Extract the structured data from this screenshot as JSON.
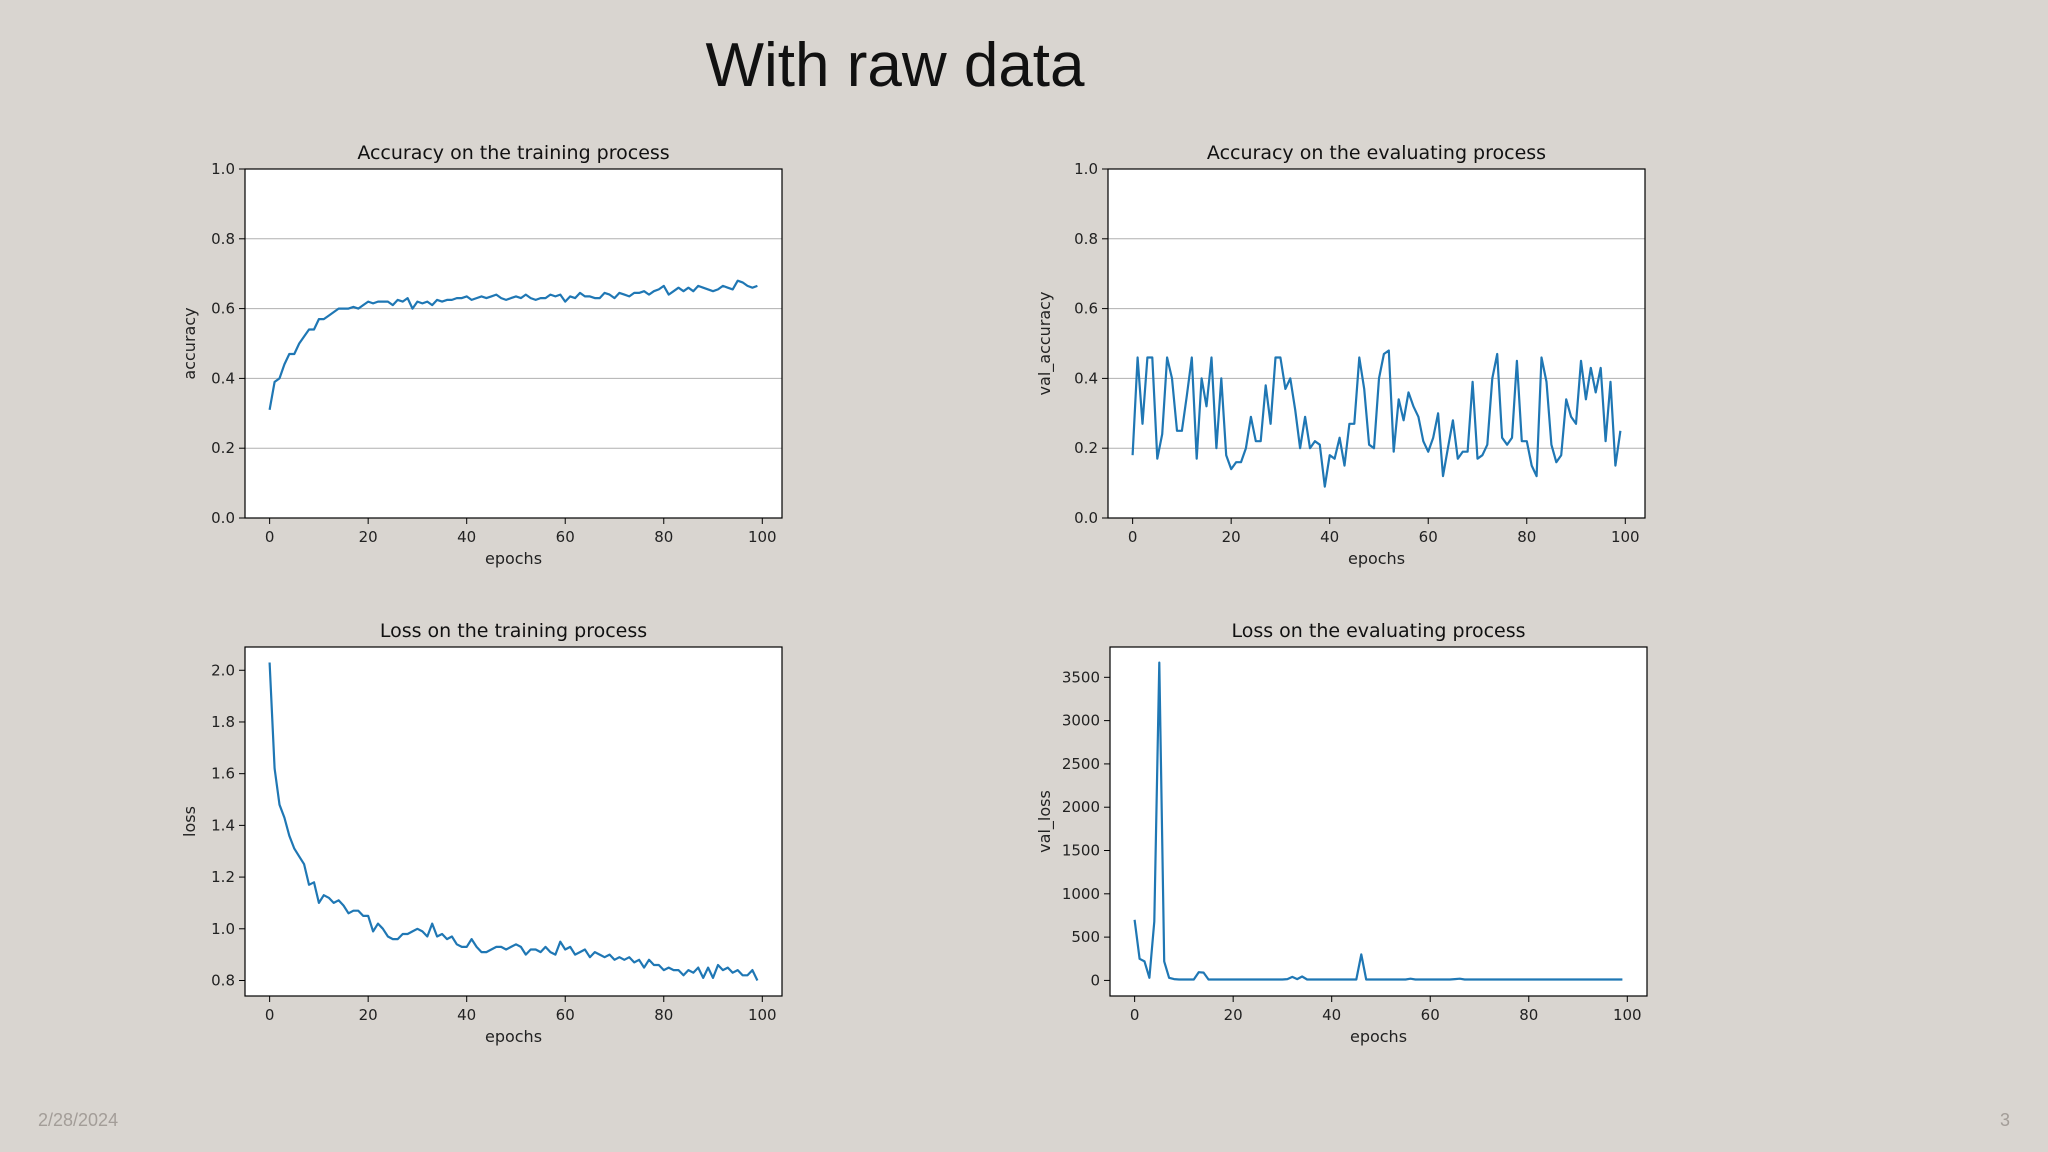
{
  "slide": {
    "title": "With raw data",
    "date": "2/28/2024",
    "page": "3"
  },
  "colors": {
    "line": "#1f77b4",
    "grid": "#b0b0b0",
    "axis": "#000000",
    "plot_bg": "#ffffff"
  },
  "chart_data": [
    {
      "type": "line",
      "title": "Accuracy on the training process",
      "xlabel": "epochs",
      "ylabel": "accuracy",
      "xlim": [
        -5,
        104
      ],
      "ylim": [
        0.0,
        1.0
      ],
      "xticks": [
        0,
        20,
        40,
        60,
        80,
        100
      ],
      "yticks": [
        0.0,
        0.2,
        0.4,
        0.6,
        0.8,
        1.0
      ],
      "ytick_labels": [
        "0.0",
        "0.2",
        "0.4",
        "0.6",
        "0.8",
        "1.0"
      ],
      "grid": "y",
      "x": [
        0,
        1,
        2,
        3,
        4,
        5,
        6,
        7,
        8,
        9,
        10,
        11,
        12,
        13,
        14,
        15,
        16,
        17,
        18,
        19,
        20,
        21,
        22,
        23,
        24,
        25,
        26,
        27,
        28,
        29,
        30,
        31,
        32,
        33,
        34,
        35,
        36,
        37,
        38,
        39,
        40,
        41,
        42,
        43,
        44,
        45,
        46,
        47,
        48,
        49,
        50,
        51,
        52,
        53,
        54,
        55,
        56,
        57,
        58,
        59,
        60,
        61,
        62,
        63,
        64,
        65,
        66,
        67,
        68,
        69,
        70,
        71,
        72,
        73,
        74,
        75,
        76,
        77,
        78,
        79,
        80,
        81,
        82,
        83,
        84,
        85,
        86,
        87,
        88,
        89,
        90,
        91,
        92,
        93,
        94,
        95,
        96,
        97,
        98,
        99
      ],
      "values": [
        0.31,
        0.39,
        0.4,
        0.44,
        0.47,
        0.47,
        0.5,
        0.52,
        0.54,
        0.54,
        0.57,
        0.57,
        0.58,
        0.59,
        0.6,
        0.6,
        0.6,
        0.605,
        0.6,
        0.61,
        0.62,
        0.615,
        0.62,
        0.62,
        0.62,
        0.61,
        0.625,
        0.62,
        0.63,
        0.6,
        0.62,
        0.615,
        0.62,
        0.61,
        0.625,
        0.62,
        0.625,
        0.625,
        0.63,
        0.63,
        0.635,
        0.625,
        0.63,
        0.635,
        0.63,
        0.635,
        0.64,
        0.63,
        0.625,
        0.63,
        0.635,
        0.63,
        0.64,
        0.63,
        0.625,
        0.63,
        0.63,
        0.64,
        0.635,
        0.64,
        0.62,
        0.635,
        0.63,
        0.645,
        0.635,
        0.635,
        0.63,
        0.63,
        0.645,
        0.64,
        0.63,
        0.645,
        0.64,
        0.635,
        0.645,
        0.645,
        0.65,
        0.64,
        0.65,
        0.655,
        0.665,
        0.64,
        0.65,
        0.66,
        0.65,
        0.66,
        0.65,
        0.665,
        0.66,
        0.655,
        0.65,
        0.655,
        0.665,
        0.66,
        0.655,
        0.68,
        0.675,
        0.665,
        0.66,
        0.665
      ]
    },
    {
      "type": "line",
      "title": "Accuracy on the evaluating process",
      "xlabel": "epochs",
      "ylabel": "val_accuracy",
      "xlim": [
        -5,
        104
      ],
      "ylim": [
        0.0,
        1.0
      ],
      "xticks": [
        0,
        20,
        40,
        60,
        80,
        100
      ],
      "yticks": [
        0.0,
        0.2,
        0.4,
        0.6,
        0.8,
        1.0
      ],
      "ytick_labels": [
        "0.0",
        "0.2",
        "0.4",
        "0.6",
        "0.8",
        "1.0"
      ],
      "grid": "y",
      "x": [
        0,
        1,
        2,
        3,
        4,
        5,
        6,
        7,
        8,
        9,
        10,
        11,
        12,
        13,
        14,
        15,
        16,
        17,
        18,
        19,
        20,
        21,
        22,
        23,
        24,
        25,
        26,
        27,
        28,
        29,
        30,
        31,
        32,
        33,
        34,
        35,
        36,
        37,
        38,
        39,
        40,
        41,
        42,
        43,
        44,
        45,
        46,
        47,
        48,
        49,
        50,
        51,
        52,
        53,
        54,
        55,
        56,
        57,
        58,
        59,
        60,
        61,
        62,
        63,
        64,
        65,
        66,
        67,
        68,
        69,
        70,
        71,
        72,
        73,
        74,
        75,
        76,
        77,
        78,
        79,
        80,
        81,
        82,
        83,
        84,
        85,
        86,
        87,
        88,
        89,
        90,
        91,
        92,
        93,
        94,
        95,
        96,
        97,
        98,
        99
      ],
      "values": [
        0.18,
        0.46,
        0.27,
        0.46,
        0.46,
        0.17,
        0.24,
        0.46,
        0.4,
        0.25,
        0.25,
        0.35,
        0.46,
        0.17,
        0.4,
        0.32,
        0.46,
        0.2,
        0.4,
        0.18,
        0.14,
        0.16,
        0.16,
        0.2,
        0.29,
        0.22,
        0.22,
        0.38,
        0.27,
        0.46,
        0.46,
        0.37,
        0.4,
        0.31,
        0.2,
        0.29,
        0.2,
        0.22,
        0.21,
        0.09,
        0.18,
        0.17,
        0.23,
        0.15,
        0.27,
        0.27,
        0.46,
        0.37,
        0.21,
        0.2,
        0.4,
        0.47,
        0.48,
        0.19,
        0.34,
        0.28,
        0.36,
        0.32,
        0.29,
        0.22,
        0.19,
        0.23,
        0.3,
        0.12,
        0.2,
        0.28,
        0.17,
        0.19,
        0.19,
        0.39,
        0.17,
        0.18,
        0.21,
        0.4,
        0.47,
        0.23,
        0.21,
        0.23,
        0.45,
        0.22,
        0.22,
        0.15,
        0.12,
        0.46,
        0.39,
        0.21,
        0.16,
        0.18,
        0.34,
        0.29,
        0.27,
        0.45,
        0.34,
        0.43,
        0.36,
        0.43,
        0.22,
        0.39,
        0.15,
        0.25
      ]
    },
    {
      "type": "line",
      "title": "Loss on the training process",
      "xlabel": "epochs",
      "ylabel": "loss",
      "xlim": [
        -5,
        104
      ],
      "ylim": [
        0.74,
        2.09
      ],
      "xticks": [
        0,
        20,
        40,
        60,
        80,
        100
      ],
      "yticks": [
        0.8,
        1.0,
        1.2,
        1.4,
        1.6,
        1.8,
        2.0
      ],
      "ytick_labels": [
        "0.8",
        "1.0",
        "1.2",
        "1.4",
        "1.6",
        "1.8",
        "2.0"
      ],
      "grid": "none",
      "x": [
        0,
        1,
        2,
        3,
        4,
        5,
        6,
        7,
        8,
        9,
        10,
        11,
        12,
        13,
        14,
        15,
        16,
        17,
        18,
        19,
        20,
        21,
        22,
        23,
        24,
        25,
        26,
        27,
        28,
        29,
        30,
        31,
        32,
        33,
        34,
        35,
        36,
        37,
        38,
        39,
        40,
        41,
        42,
        43,
        44,
        45,
        46,
        47,
        48,
        49,
        50,
        51,
        52,
        53,
        54,
        55,
        56,
        57,
        58,
        59,
        60,
        61,
        62,
        63,
        64,
        65,
        66,
        67,
        68,
        69,
        70,
        71,
        72,
        73,
        74,
        75,
        76,
        77,
        78,
        79,
        80,
        81,
        82,
        83,
        84,
        85,
        86,
        87,
        88,
        89,
        90,
        91,
        92,
        93,
        94,
        95,
        96,
        97,
        98,
        99
      ],
      "values": [
        2.03,
        1.62,
        1.48,
        1.43,
        1.36,
        1.31,
        1.28,
        1.25,
        1.17,
        1.18,
        1.1,
        1.13,
        1.12,
        1.1,
        1.11,
        1.09,
        1.06,
        1.07,
        1.07,
        1.05,
        1.05,
        0.99,
        1.02,
        1.0,
        0.97,
        0.96,
        0.96,
        0.98,
        0.98,
        0.99,
        1.0,
        0.99,
        0.97,
        1.02,
        0.97,
        0.98,
        0.96,
        0.97,
        0.94,
        0.93,
        0.93,
        0.96,
        0.93,
        0.91,
        0.91,
        0.92,
        0.93,
        0.93,
        0.92,
        0.93,
        0.94,
        0.93,
        0.9,
        0.92,
        0.92,
        0.91,
        0.93,
        0.91,
        0.9,
        0.95,
        0.92,
        0.93,
        0.9,
        0.91,
        0.92,
        0.89,
        0.91,
        0.9,
        0.89,
        0.9,
        0.88,
        0.89,
        0.88,
        0.89,
        0.87,
        0.88,
        0.85,
        0.88,
        0.86,
        0.86,
        0.84,
        0.85,
        0.84,
        0.84,
        0.82,
        0.84,
        0.83,
        0.85,
        0.81,
        0.85,
        0.81,
        0.86,
        0.84,
        0.85,
        0.83,
        0.84,
        0.82,
        0.82,
        0.84,
        0.8
      ]
    },
    {
      "type": "line",
      "title": "Loss on the evaluating process",
      "xlabel": "epochs",
      "ylabel": "val_loss",
      "xlim": [
        -5,
        104
      ],
      "ylim": [
        -180,
        3850
      ],
      "xticks": [
        0,
        20,
        40,
        60,
        80,
        100
      ],
      "yticks": [
        0,
        500,
        1000,
        1500,
        2000,
        2500,
        3000,
        3500
      ],
      "ytick_labels": [
        "0",
        "500",
        "1000",
        "1500",
        "2000",
        "2500",
        "3000",
        "3500"
      ],
      "grid": "none",
      "x": [
        0,
        1,
        2,
        3,
        4,
        5,
        6,
        7,
        8,
        9,
        10,
        11,
        12,
        13,
        14,
        15,
        16,
        17,
        18,
        19,
        20,
        21,
        22,
        23,
        24,
        25,
        26,
        27,
        28,
        29,
        30,
        31,
        32,
        33,
        34,
        35,
        36,
        37,
        38,
        39,
        40,
        41,
        42,
        43,
        44,
        45,
        46,
        47,
        48,
        49,
        50,
        51,
        52,
        53,
        54,
        55,
        56,
        57,
        58,
        59,
        60,
        61,
        62,
        63,
        64,
        65,
        66,
        67,
        68,
        69,
        70,
        71,
        72,
        73,
        74,
        75,
        76,
        77,
        78,
        79,
        80,
        81,
        82,
        83,
        84,
        85,
        86,
        87,
        88,
        89,
        90,
        91,
        92,
        93,
        94,
        95,
        96,
        97,
        98,
        99
      ],
      "values": [
        700,
        250,
        220,
        30,
        680,
        3670,
        220,
        30,
        15,
        10,
        10,
        10,
        10,
        95,
        90,
        10,
        10,
        10,
        10,
        10,
        10,
        10,
        10,
        10,
        10,
        10,
        10,
        10,
        10,
        10,
        10,
        15,
        40,
        15,
        45,
        10,
        10,
        10,
        10,
        10,
        10,
        10,
        10,
        10,
        10,
        10,
        300,
        10,
        10,
        10,
        10,
        10,
        10,
        10,
        10,
        10,
        20,
        10,
        10,
        10,
        10,
        10,
        10,
        10,
        10,
        15,
        20,
        10,
        10,
        10,
        10,
        10,
        10,
        10,
        10,
        10,
        10,
        10,
        10,
        10,
        10,
        10,
        10,
        10,
        10,
        10,
        10,
        10,
        10,
        10,
        10,
        10,
        10,
        10,
        10,
        10,
        10,
        10,
        10,
        10
      ]
    }
  ]
}
